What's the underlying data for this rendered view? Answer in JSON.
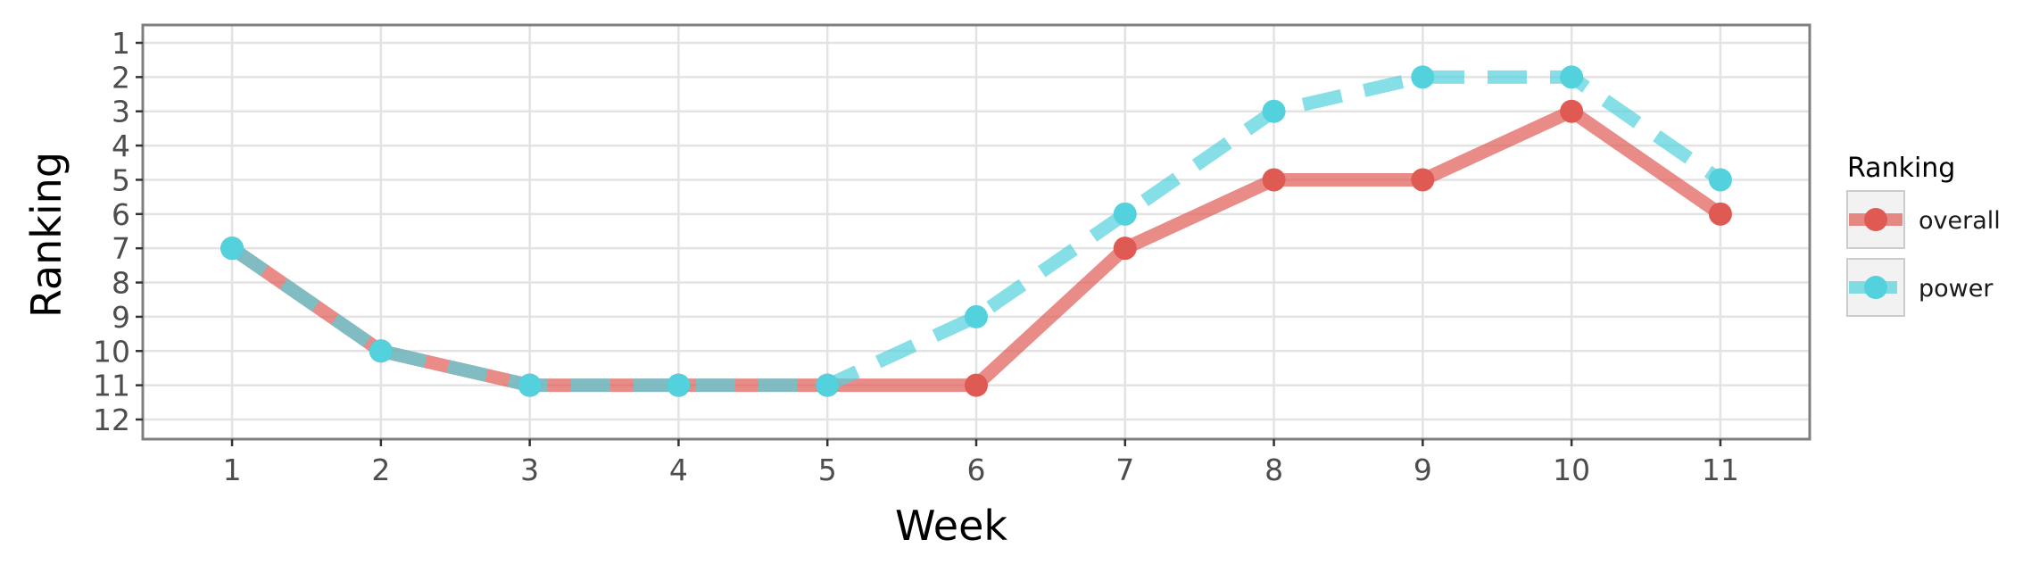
{
  "chart_data": {
    "type": "line",
    "xlabel": "Week",
    "ylabel": "Ranking",
    "x": [
      1,
      2,
      3,
      4,
      5,
      6,
      7,
      8,
      9,
      10,
      11
    ],
    "x_ticks": [
      "1",
      "2",
      "3",
      "4",
      "5",
      "6",
      "7",
      "8",
      "9",
      "10",
      "11"
    ],
    "y_ticks": [
      "1",
      "2",
      "3",
      "4",
      "5",
      "6",
      "7",
      "8",
      "9",
      "10",
      "11",
      "12"
    ],
    "y_reversed": true,
    "xlim": [
      0.4,
      11.6
    ],
    "ylim": [
      1,
      12
    ],
    "grid": true,
    "legend": {
      "title": "Ranking",
      "position": "right"
    },
    "series": [
      {
        "name": "overall",
        "values": [
          7,
          10,
          11,
          11,
          11,
          11,
          7,
          5,
          5,
          3,
          6
        ],
        "color": "#e05a54",
        "line_style": "solid"
      },
      {
        "name": "power",
        "values": [
          7,
          10,
          11,
          11,
          11,
          9,
          6,
          3,
          2,
          2,
          5
        ],
        "color": "#53d1dc",
        "line_style": "dashed"
      }
    ]
  }
}
